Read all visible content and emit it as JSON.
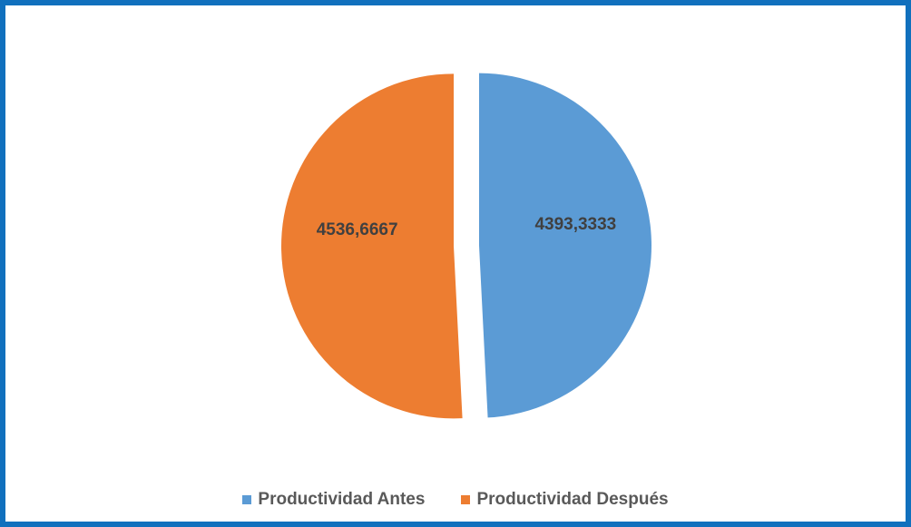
{
  "chart_data": {
    "type": "pie",
    "categories": [
      "Productividad Antes",
      "Productividad Después"
    ],
    "values": [
      4393.3333,
      4536.6667
    ],
    "data_labels": [
      "4393,3333",
      "4536,6667"
    ],
    "colors": [
      "#5b9bd5",
      "#ed7d31"
    ],
    "title": "",
    "legend_position": "bottom",
    "exploded": true
  },
  "frame": {
    "border_color": "#1170bd"
  }
}
